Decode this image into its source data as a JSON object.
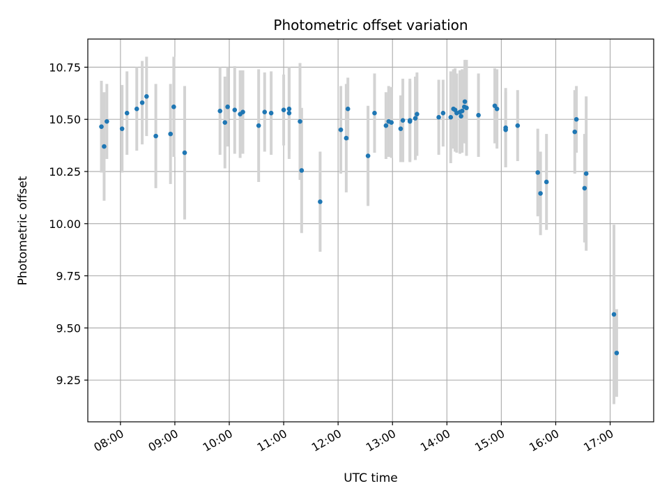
{
  "chart_data": {
    "type": "scatter",
    "title": "Photometric offset variation",
    "xlabel": "UTC time",
    "ylabel": "Photometric offset",
    "xlim": [
      7.4,
      17.8
    ],
    "ylim": [
      9.05,
      10.885
    ],
    "x_ticks": [
      8,
      9,
      10,
      11,
      12,
      13,
      14,
      15,
      16,
      17
    ],
    "x_tick_labels": [
      "08:00",
      "09:00",
      "10:00",
      "11:00",
      "12:00",
      "13:00",
      "14:00",
      "15:00",
      "16:00",
      "17:00"
    ],
    "y_ticks": [
      9.25,
      9.5,
      9.75,
      10.0,
      10.25,
      10.5,
      10.75
    ],
    "y_tick_labels": [
      "9.25",
      "9.50",
      "9.75",
      "10.00",
      "10.25",
      "10.50",
      "10.75"
    ],
    "grid": true,
    "colors": {
      "point": "#1f77b4",
      "errorbar": "#d3d3d3",
      "grid": "#b0b0b0"
    },
    "series": [
      {
        "name": "offset",
        "x": [
          7.65,
          7.7,
          7.75,
          8.03,
          8.12,
          8.3,
          8.4,
          8.48,
          8.65,
          8.92,
          8.98,
          9.18,
          9.83,
          9.92,
          9.97,
          10.1,
          10.2,
          10.25,
          10.54,
          10.65,
          10.77,
          11.0,
          11.1,
          11.1,
          11.3,
          11.33,
          11.67,
          12.05,
          12.15,
          12.18,
          12.55,
          12.67,
          12.88,
          12.93,
          12.98,
          13.15,
          13.19,
          13.32,
          13.32,
          13.42,
          13.45,
          13.85,
          13.93,
          14.07,
          14.12,
          14.15,
          14.18,
          14.24,
          14.26,
          14.28,
          14.32,
          14.33,
          14.36,
          14.58,
          14.88,
          14.92,
          15.08,
          15.08,
          15.3,
          15.67,
          15.72,
          15.83,
          16.35,
          16.38,
          16.53,
          16.56,
          17.07,
          17.12
        ],
        "y": [
          10.465,
          10.37,
          10.49,
          10.455,
          10.53,
          10.55,
          10.58,
          10.61,
          10.42,
          10.43,
          10.56,
          10.34,
          10.54,
          10.485,
          10.56,
          10.545,
          10.525,
          10.535,
          10.47,
          10.535,
          10.53,
          10.545,
          10.55,
          10.53,
          10.49,
          10.255,
          10.105,
          10.45,
          10.41,
          10.55,
          10.325,
          10.53,
          10.47,
          10.49,
          10.485,
          10.455,
          10.495,
          10.49,
          10.495,
          10.505,
          10.525,
          10.51,
          10.53,
          10.51,
          10.55,
          10.545,
          10.53,
          10.535,
          10.515,
          10.54,
          10.56,
          10.585,
          10.555,
          10.52,
          10.565,
          10.55,
          10.46,
          10.45,
          10.47,
          10.245,
          10.145,
          10.2,
          10.44,
          10.5,
          10.17,
          10.24,
          9.565,
          9.38
        ],
        "yerr": [
          0.22,
          0.26,
          0.18,
          0.21,
          0.2,
          0.2,
          0.2,
          0.19,
          0.25,
          0.24,
          0.24,
          0.32,
          0.21,
          0.22,
          0.19,
          0.21,
          0.21,
          0.2,
          0.27,
          0.19,
          0.2,
          0.17,
          0.2,
          0.22,
          0.28,
          0.3,
          0.24,
          0.21,
          0.26,
          0.15,
          0.24,
          0.19,
          0.16,
          0.17,
          0.17,
          0.16,
          0.2,
          0.19,
          0.2,
          0.2,
          0.2,
          0.18,
          0.16,
          0.22,
          0.19,
          0.2,
          0.19,
          0.2,
          0.17,
          0.2,
          0.17,
          0.2,
          0.23,
          0.2,
          0.18,
          0.19,
          0.19,
          0.18,
          0.17,
          0.21,
          0.2,
          0.23,
          0.2,
          0.16,
          0.26,
          0.37,
          0.43,
          0.21
        ]
      }
    ]
  }
}
